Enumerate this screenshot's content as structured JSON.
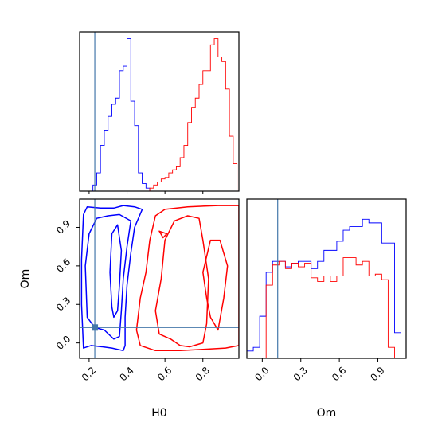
{
  "chart_data": {
    "type": "corner",
    "parameters": [
      "H0",
      "Om"
    ],
    "colors": {
      "series_a": "#0000ff",
      "series_b": "#ff0000",
      "truth": "#4477aa"
    },
    "truth": {
      "H0": 0.23,
      "Om": 0.12
    },
    "axes": {
      "H0": {
        "label": "H0",
        "range": [
          0.15,
          0.99
        ],
        "ticks": [
          0.2,
          0.4,
          0.6,
          0.8
        ],
        "tick_labels": [
          "0.2",
          "0.4",
          "0.6",
          "0.8"
        ]
      },
      "Om": {
        "label": "Om",
        "range": [
          -0.12,
          1.12
        ],
        "ticks": [
          0.0,
          0.3,
          0.6,
          0.9
        ],
        "tick_labels": [
          "0.0",
          "0.3",
          "0.6",
          "0.9"
        ]
      }
    },
    "h0_histogram": {
      "bin_edges": [
        0.22,
        0.24,
        0.26,
        0.28,
        0.3,
        0.32,
        0.34,
        0.36,
        0.38,
        0.4,
        0.42,
        0.44,
        0.46,
        0.48,
        0.5,
        0.52,
        0.54,
        0.56,
        0.58,
        0.6,
        0.62,
        0.64,
        0.66,
        0.68,
        0.7,
        0.72,
        0.74,
        0.76,
        0.78,
        0.8,
        0.82,
        0.84,
        0.86,
        0.88,
        0.9,
        0.92,
        0.94,
        0.96,
        0.98,
        1.0
      ],
      "series": [
        {
          "values": [
            0.04,
            0.12,
            0.3,
            0.4,
            0.49,
            0.57,
            0.61,
            0.79,
            0.82,
            1.0,
            0.59,
            0.43,
            0.12,
            0.05,
            0.02,
            0,
            0,
            0,
            0,
            0,
            0,
            0,
            0,
            0,
            0,
            0,
            0,
            0,
            0,
            0,
            0,
            0,
            0,
            0,
            0,
            0,
            0,
            0,
            0
          ]
        },
        {
          "values": [
            0,
            0,
            0,
            0,
            0,
            0,
            0,
            0,
            0,
            0,
            0,
            0,
            0,
            0,
            0,
            0.02,
            0.04,
            0.06,
            0.08,
            0.09,
            0.12,
            0.14,
            0.16,
            0.22,
            0.3,
            0.45,
            0.55,
            0.61,
            0.7,
            0.79,
            0.79,
            0.96,
            1.0,
            0.88,
            0.85,
            0.67,
            0.36,
            0.18,
            0
          ]
        }
      ]
    },
    "om_histogram": {
      "bin_edges": [
        -0.12,
        -0.07,
        -0.02,
        0.03,
        0.08,
        0.13,
        0.18,
        0.23,
        0.28,
        0.33,
        0.38,
        0.43,
        0.48,
        0.53,
        0.58,
        0.63,
        0.68,
        0.73,
        0.78,
        0.83,
        0.88,
        0.93,
        0.98,
        1.03,
        1.08
      ],
      "series": [
        {
          "values": [
            0.04,
            0.06,
            0.23,
            0.47,
            0.53,
            0.53,
            0.5,
            0.52,
            0.53,
            0.53,
            0.49,
            0.53,
            0.59,
            0.59,
            0.64,
            0.7,
            0.72,
            0.72,
            0.76,
            0.74,
            0.74,
            0.63,
            0.63,
            0.14
          ]
        },
        {
          "values": [
            0,
            0,
            0,
            0.4,
            0.51,
            0.53,
            0.49,
            0.52,
            0.5,
            0.52,
            0.44,
            0.42,
            0.45,
            0.42,
            0.45,
            0.55,
            0.55,
            0.51,
            0.53,
            0.45,
            0.46,
            0.43,
            0.06,
            0
          ]
        }
      ]
    },
    "joint_contours": {
      "series_a": [
        [
          [
            0.17,
            -0.04
          ],
          [
            0.16,
            0.3
          ],
          [
            0.16,
            0.65
          ],
          [
            0.17,
            1.0
          ],
          [
            0.19,
            1.06
          ],
          [
            0.26,
            1.05
          ],
          [
            0.33,
            1.05
          ],
          [
            0.38,
            1.07
          ],
          [
            0.44,
            1.06
          ],
          [
            0.48,
            1.04
          ],
          [
            0.44,
            0.9
          ],
          [
            0.42,
            0.7
          ],
          [
            0.4,
            0.45
          ],
          [
            0.39,
            0.2
          ],
          [
            0.39,
            -0.02
          ],
          [
            0.38,
            -0.06
          ],
          [
            0.32,
            -0.04
          ],
          [
            0.27,
            -0.03
          ],
          [
            0.21,
            -0.02
          ],
          [
            0.17,
            -0.04
          ]
        ],
        [
          [
            0.19,
            0.2
          ],
          [
            0.18,
            0.6
          ],
          [
            0.2,
            0.85
          ],
          [
            0.24,
            0.97
          ],
          [
            0.3,
            0.99
          ],
          [
            0.36,
            1.0
          ],
          [
            0.42,
            0.95
          ],
          [
            0.4,
            0.75
          ],
          [
            0.38,
            0.5
          ],
          [
            0.37,
            0.25
          ],
          [
            0.36,
            0.05
          ],
          [
            0.33,
            0.03
          ],
          [
            0.28,
            0.1
          ],
          [
            0.23,
            0.12
          ],
          [
            0.19,
            0.2
          ]
        ],
        [
          [
            0.32,
            0.28
          ],
          [
            0.31,
            0.55
          ],
          [
            0.32,
            0.85
          ],
          [
            0.35,
            0.92
          ],
          [
            0.37,
            0.72
          ],
          [
            0.36,
            0.45
          ],
          [
            0.35,
            0.25
          ],
          [
            0.33,
            0.2
          ],
          [
            0.32,
            0.28
          ]
        ]
      ],
      "series_b": [
        [
          [
            0.55,
            0.99
          ],
          [
            0.52,
            0.8
          ],
          [
            0.5,
            0.55
          ],
          [
            0.47,
            0.35
          ],
          [
            0.45,
            0.1
          ],
          [
            0.47,
            -0.02
          ],
          [
            0.55,
            -0.06
          ],
          [
            0.68,
            -0.06
          ],
          [
            0.8,
            -0.05
          ],
          [
            0.92,
            -0.04
          ],
          [
            0.99,
            -0.02
          ],
          [
            0.99,
            0.5
          ],
          [
            0.99,
            0.9
          ],
          [
            0.99,
            1.07
          ],
          [
            0.88,
            1.07
          ],
          [
            0.72,
            1.06
          ],
          [
            0.6,
            1.04
          ],
          [
            0.55,
            0.99
          ]
        ],
        [
          [
            0.65,
            0.95
          ],
          [
            0.6,
            0.8
          ],
          [
            0.58,
            0.5
          ],
          [
            0.55,
            0.25
          ],
          [
            0.57,
            0.07
          ],
          [
            0.63,
            0.03
          ],
          [
            0.68,
            -0.02
          ],
          [
            0.73,
            -0.03
          ],
          [
            0.8,
            0.0
          ],
          [
            0.82,
            0.15
          ],
          [
            0.83,
            0.5
          ],
          [
            0.8,
            0.8
          ],
          [
            0.78,
            0.97
          ],
          [
            0.72,
            0.99
          ],
          [
            0.65,
            0.95
          ]
        ],
        [
          [
            0.82,
            0.35
          ],
          [
            0.8,
            0.55
          ],
          [
            0.84,
            0.8
          ],
          [
            0.89,
            0.8
          ],
          [
            0.93,
            0.6
          ],
          [
            0.91,
            0.35
          ],
          [
            0.88,
            0.1
          ],
          [
            0.84,
            0.2
          ],
          [
            0.82,
            0.35
          ]
        ],
        [
          [
            0.57,
            0.87
          ],
          [
            0.61,
            0.85
          ],
          [
            0.59,
            0.82
          ],
          [
            0.57,
            0.87
          ]
        ]
      ]
    }
  }
}
